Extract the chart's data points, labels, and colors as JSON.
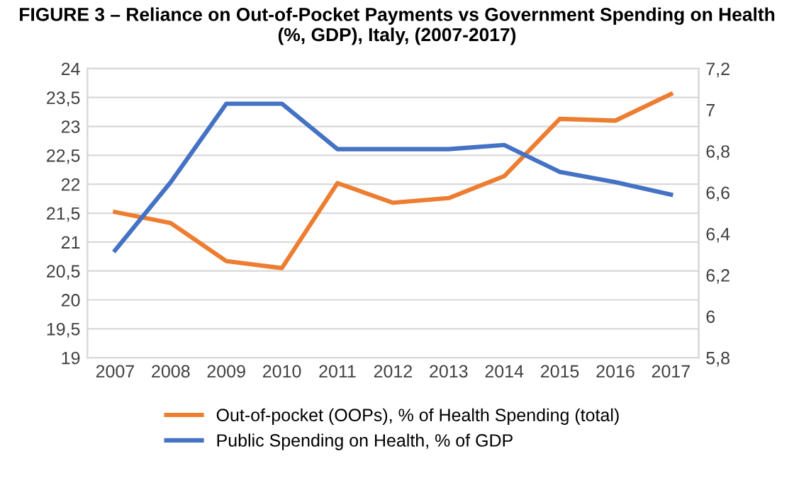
{
  "chart_data": {
    "type": "line",
    "title": "FIGURE 3 – Reliance on Out-of-Pocket Payments vs Government Spending on Health\n(%, GDP), Italy, (2007-2017)",
    "categories": [
      "2007",
      "2008",
      "2009",
      "2010",
      "2011",
      "2012",
      "2013",
      "2014",
      "2015",
      "2016",
      "2017"
    ],
    "series": [
      {
        "name": "Out-of-pocket (OOPs), % of Health Spending (total)",
        "color": "#ed7d31",
        "values": [
          21.52,
          21.33,
          20.67,
          20.55,
          22.02,
          21.68,
          21.76,
          22.14,
          23.13,
          23.1,
          23.56
        ]
      },
      {
        "name": "Public Spending on Health, % of GDP",
        "color": "#4472c4",
        "axis": "y2",
        "values": [
          6.32,
          6.65,
          7.03,
          7.03,
          6.81,
          6.81,
          6.81,
          6.83,
          6.7,
          6.65,
          6.59
        ]
      }
    ],
    "ylim": [
      19,
      24
    ],
    "yticks": [
      19,
      {
        "value": 19.5,
        "label": "19,5"
      },
      20,
      {
        "value": 20.5,
        "label": "20,5"
      },
      21,
      {
        "value": 21.5,
        "label": "21,5"
      },
      22,
      {
        "value": 22.5,
        "label": "22,5"
      },
      23,
      {
        "value": 23.5,
        "label": "23,5"
      },
      24
    ],
    "y2lim": [
      5.8,
      7.2
    ],
    "y2ticks": [
      {
        "value": 5.8,
        "label": "5,8"
      },
      6,
      {
        "value": 6.2,
        "label": "6,2"
      },
      {
        "value": 6.4,
        "label": "6,4"
      },
      {
        "value": 6.6,
        "label": "6,6"
      },
      {
        "value": 6.8,
        "label": "6,8"
      },
      7,
      {
        "value": 7.2,
        "label": "7,2"
      }
    ],
    "grid": "y",
    "legend": "bottom",
    "marker": "none",
    "line_style": "solid"
  }
}
